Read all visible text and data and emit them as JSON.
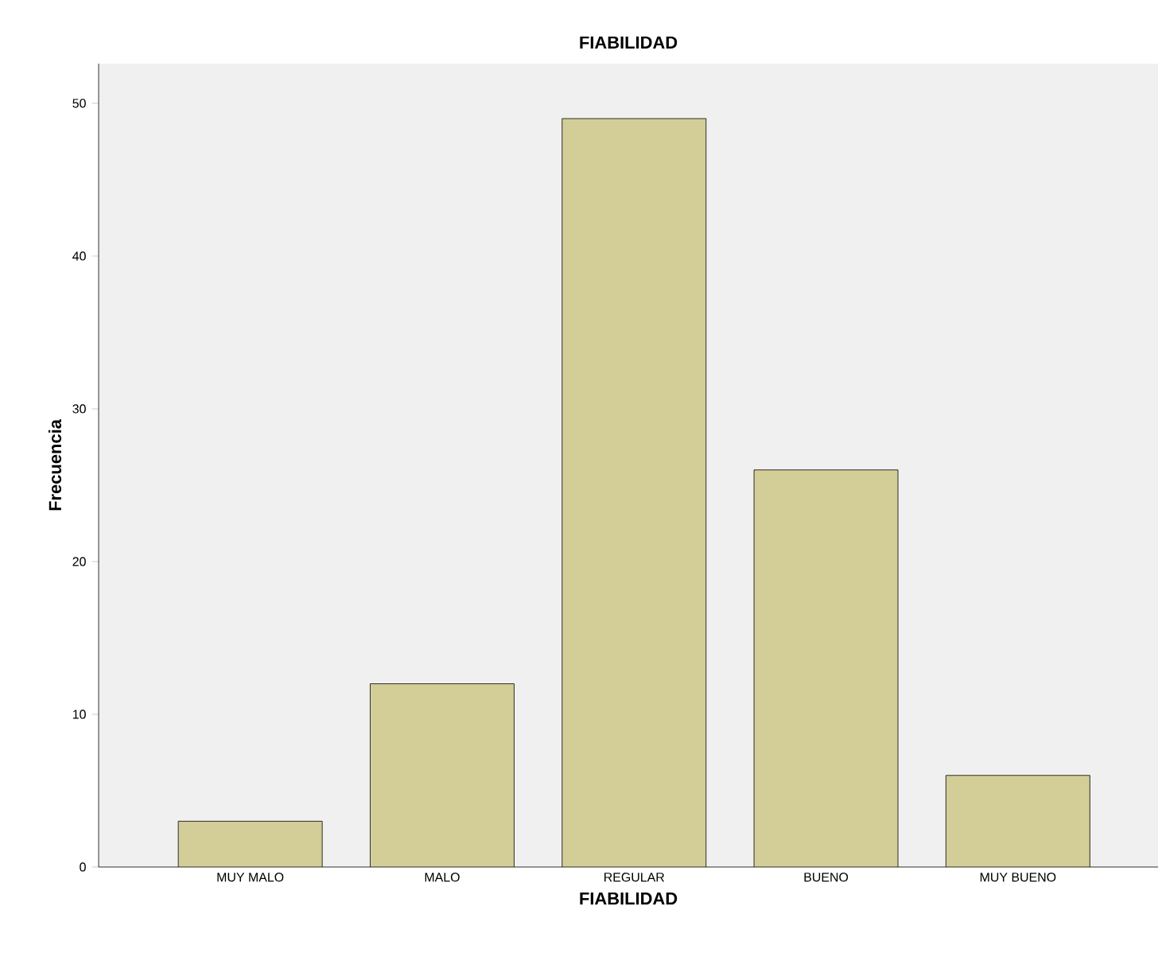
{
  "chart_data": {
    "type": "bar",
    "title": "FIABILIDAD",
    "xlabel": "FIABILIDAD",
    "ylabel": "Frecuencia",
    "categories": [
      "MUY MALO",
      "MALO",
      "REGULAR",
      "BUENO",
      "MUY BUENO"
    ],
    "values": [
      3,
      12,
      49,
      26,
      6
    ],
    "color": "#d3ce97",
    "ylim": [
      0,
      52.6
    ],
    "yticks": [
      0,
      10,
      20,
      30,
      40,
      50
    ],
    "grid": false
  }
}
